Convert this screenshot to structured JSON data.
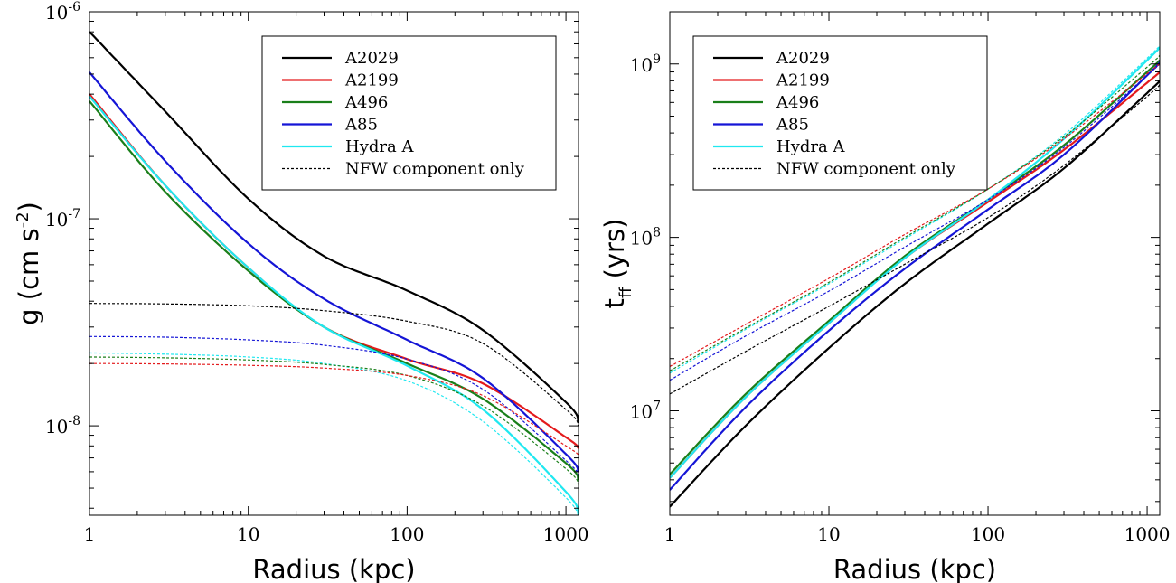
{
  "chart_data": [
    {
      "type": "line",
      "xlabel": "Radius (kpc)",
      "ylabel_main": "g (cm s",
      "ylabel_sup": "-2",
      "ylabel_tail": ")",
      "xscale": "log",
      "yscale": "log",
      "xlim": [
        1,
        1200
      ],
      "ylim": [
        3.7e-09,
        1e-06
      ],
      "xticks": [
        {
          "value": 1,
          "label": "1"
        },
        {
          "value": 10,
          "label": "10"
        },
        {
          "value": 100,
          "label": "100"
        },
        {
          "value": 1000,
          "label": "1000"
        }
      ],
      "yticks": [
        {
          "value": 1e-08,
          "base": "10",
          "exp": "-8"
        },
        {
          "value": 1e-07,
          "base": "10",
          "exp": "-7"
        },
        {
          "value": 1e-06,
          "base": "10",
          "exp": "-6"
        }
      ],
      "legend_position": "top-right",
      "legend": [
        {
          "label": "A2029",
          "color": "#000000",
          "style": "solid"
        },
        {
          "label": "A2199",
          "color": "#e41a1c",
          "style": "solid"
        },
        {
          "label": "A496",
          "color": "#1a7f1a",
          "style": "solid"
        },
        {
          "label": "A85",
          "color": "#1515d6",
          "style": "solid"
        },
        {
          "label": "Hydra A",
          "color": "#1fe8f0",
          "style": "solid"
        },
        {
          "label": "NFW component only",
          "color": "#000000",
          "style": "dashed"
        }
      ],
      "series": [
        {
          "name": "A2029",
          "color": "#000000",
          "style": "solid",
          "x": [
            1,
            3,
            10,
            30,
            100,
            300,
            1000,
            1200
          ],
          "y": [
            8e-07,
            3.3e-07,
            1.25e-07,
            6.6e-08,
            4.5e-08,
            2.9e-08,
            1.3e-08,
            1.05e-08
          ]
        },
        {
          "name": "A2199",
          "color": "#e41a1c",
          "style": "solid",
          "x": [
            1,
            3,
            10,
            30,
            100,
            300,
            1000,
            1200
          ],
          "y": [
            4e-07,
            1.45e-07,
            5.8e-08,
            3e-08,
            2.1e-08,
            1.6e-08,
            8.8e-09,
            7.8e-09
          ]
        },
        {
          "name": "A496",
          "color": "#1a7f1a",
          "style": "solid",
          "x": [
            1,
            3,
            10,
            30,
            100,
            300,
            1000,
            1200
          ],
          "y": [
            3.7e-07,
            1.35e-07,
            5.6e-08,
            3e-08,
            2e-08,
            1.35e-08,
            6.6e-09,
            5.5e-09
          ]
        },
        {
          "name": "A85",
          "color": "#1515d6",
          "style": "solid",
          "x": [
            1,
            3,
            10,
            30,
            100,
            300,
            1000,
            1200
          ],
          "y": [
            5.1e-07,
            1.9e-07,
            7.6e-08,
            4.1e-08,
            2.6e-08,
            1.7e-08,
            7.3e-09,
            6e-09
          ]
        },
        {
          "name": "Hydra A",
          "color": "#1fe8f0",
          "style": "solid",
          "x": [
            1,
            3,
            10,
            30,
            100,
            300,
            1000,
            1200
          ],
          "y": [
            3.9e-07,
            1.45e-07,
            5.8e-08,
            3e-08,
            1.95e-08,
            1.2e-08,
            4.8e-09,
            3.8e-09
          ]
        },
        {
          "name": "A2029",
          "color": "#000000",
          "style": "dashed",
          "x": [
            1,
            3,
            10,
            30,
            100,
            300,
            1000,
            1200
          ],
          "y": [
            3.9e-08,
            3.88e-08,
            3.8e-08,
            3.6e-08,
            3.2e-08,
            2.5e-08,
            1.2e-08,
            1e-08
          ]
        },
        {
          "name": "A85",
          "color": "#1515d6",
          "style": "dashed",
          "x": [
            1,
            3,
            10,
            30,
            100,
            300,
            1000,
            1200
          ],
          "y": [
            2.7e-08,
            2.68e-08,
            2.6e-08,
            2.45e-08,
            2.1e-08,
            1.5e-08,
            6.8e-09,
            5.8e-09
          ]
        },
        {
          "name": "Hydra A",
          "color": "#1fe8f0",
          "style": "dashed",
          "x": [
            1,
            3,
            10,
            30,
            100,
            300,
            1000,
            1200
          ],
          "y": [
            2.25e-08,
            2.22e-08,
            2.15e-08,
            2e-08,
            1.65e-08,
            1.05e-08,
            4.5e-09,
            3.6e-09
          ]
        },
        {
          "name": "A496",
          "color": "#1a7f1a",
          "style": "dashed",
          "x": [
            1,
            3,
            10,
            30,
            100,
            300,
            1000,
            1200
          ],
          "y": [
            2.15e-08,
            2.13e-08,
            2.08e-08,
            1.98e-08,
            1.75e-08,
            1.25e-08,
            6.2e-09,
            5.2e-09
          ]
        },
        {
          "name": "A2199",
          "color": "#e41a1c",
          "style": "dashed",
          "x": [
            1,
            3,
            10,
            30,
            100,
            300,
            1000,
            1200
          ],
          "y": [
            2e-08,
            1.99e-08,
            1.96e-08,
            1.9e-08,
            1.75e-08,
            1.4e-08,
            8e-09,
            7.2e-09
          ]
        }
      ]
    },
    {
      "type": "line",
      "xlabel": "Radius (kpc)",
      "ylabel_main": "t",
      "ylabel_sub": "ff",
      "ylabel_tail": " (yrs)",
      "xscale": "log",
      "yscale": "log",
      "xlim": [
        1,
        1200
      ],
      "ylim": [
        2500000.0,
        2000000000.0
      ],
      "xticks": [
        {
          "value": 1,
          "label": "1"
        },
        {
          "value": 10,
          "label": "10"
        },
        {
          "value": 100,
          "label": "100"
        },
        {
          "value": 1000,
          "label": "1000"
        }
      ],
      "yticks": [
        {
          "value": 10000000.0,
          "base": "10",
          "exp": "7"
        },
        {
          "value": 100000000.0,
          "base": "10",
          "exp": "8"
        },
        {
          "value": 1000000000.0,
          "base": "10",
          "exp": "9"
        }
      ],
      "legend_position": "top-left",
      "legend": [
        {
          "label": "A2029",
          "color": "#000000",
          "style": "solid"
        },
        {
          "label": "A2199",
          "color": "#e41a1c",
          "style": "solid"
        },
        {
          "label": "A496",
          "color": "#1a7f1a",
          "style": "solid"
        },
        {
          "label": "A85",
          "color": "#1515d6",
          "style": "solid"
        },
        {
          "label": "Hydra A",
          "color": "#1fe8f0",
          "style": "solid"
        },
        {
          "label": "NFW component only",
          "color": "#000000",
          "style": "dashed"
        }
      ],
      "series": [
        {
          "name": "A2029",
          "color": "#000000",
          "style": "solid",
          "x": [
            1,
            3,
            10,
            30,
            100,
            300,
            1000,
            1200
          ],
          "y": [
            2800000.0,
            8200000.0,
            23000000.0,
            54000000.0,
            120000000.0,
            250000000.0,
            680000000.0,
            800000000.0
          ]
        },
        {
          "name": "A2199",
          "color": "#e41a1c",
          "style": "solid",
          "x": [
            1,
            3,
            10,
            30,
            100,
            300,
            1000,
            1200
          ],
          "y": [
            4100000.0,
            12000000.0,
            32000000.0,
            76000000.0,
            160000000.0,
            320000000.0,
            780000000.0,
            900000000.0
          ]
        },
        {
          "name": "A496",
          "color": "#1a7f1a",
          "style": "solid",
          "x": [
            1,
            3,
            10,
            30,
            100,
            300,
            1000,
            1200
          ],
          "y": [
            4300000.0,
            12500000.0,
            33000000.0,
            78000000.0,
            165000000.0,
            340000000.0,
            900000000.0,
            1050000000.0
          ]
        },
        {
          "name": "A85",
          "color": "#1515d6",
          "style": "solid",
          "x": [
            1,
            3,
            10,
            30,
            100,
            300,
            1000,
            1200
          ],
          "y": [
            3500000.0,
            10500000.0,
            29000000.0,
            66000000.0,
            145000000.0,
            300000000.0,
            860000000.0,
            1020000000.0
          ]
        },
        {
          "name": "Hydra A",
          "color": "#1fe8f0",
          "style": "solid",
          "x": [
            1,
            3,
            10,
            30,
            100,
            300,
            1000,
            1200
          ],
          "y": [
            4100000.0,
            12000000.0,
            32000000.0,
            76000000.0,
            165000000.0,
            370000000.0,
            1050000000.0,
            1250000000.0
          ]
        },
        {
          "name": "A2029",
          "color": "#000000",
          "style": "dashed",
          "x": [
            1,
            3,
            10,
            30,
            100,
            300,
            1000,
            1200
          ],
          "y": [
            12500000.0,
            22000000.0,
            40000000.0,
            70000000.0,
            130000000.0,
            260000000.0,
            650000000.0,
            760000000.0
          ]
        },
        {
          "name": "A85",
          "color": "#1515d6",
          "style": "dashed",
          "x": [
            1,
            3,
            10,
            30,
            100,
            300,
            1000,
            1200
          ],
          "y": [
            15000000.0,
            27000000.0,
            49000000.0,
            88000000.0,
            165000000.0,
            330000000.0,
            860000000.0,
            1000000000.0
          ]
        },
        {
          "name": "Hydra A",
          "color": "#1fe8f0",
          "style": "dashed",
          "x": [
            1,
            3,
            10,
            30,
            100,
            300,
            1000,
            1200
          ],
          "y": [
            16500000.0,
            29500000.0,
            54000000.0,
            98000000.0,
            190000000.0,
            390000000.0,
            1080000000.0,
            1280000000.0
          ]
        },
        {
          "name": "A496",
          "color": "#1a7f1a",
          "style": "dashed",
          "x": [
            1,
            3,
            10,
            30,
            100,
            300,
            1000,
            1200
          ],
          "y": [
            17000000.0,
            30000000.0,
            55000000.0,
            100000000.0,
            190000000.0,
            380000000.0,
            960000000.0,
            1120000000.0
          ]
        },
        {
          "name": "A2199",
          "color": "#e41a1c",
          "style": "dashed",
          "x": [
            1,
            3,
            10,
            30,
            100,
            300,
            1000,
            1200
          ],
          "y": [
            18000000.0,
            31500000.0,
            58000000.0,
            104000000.0,
            190000000.0,
            370000000.0,
            880000000.0,
            1000000000.0
          ]
        }
      ]
    }
  ]
}
